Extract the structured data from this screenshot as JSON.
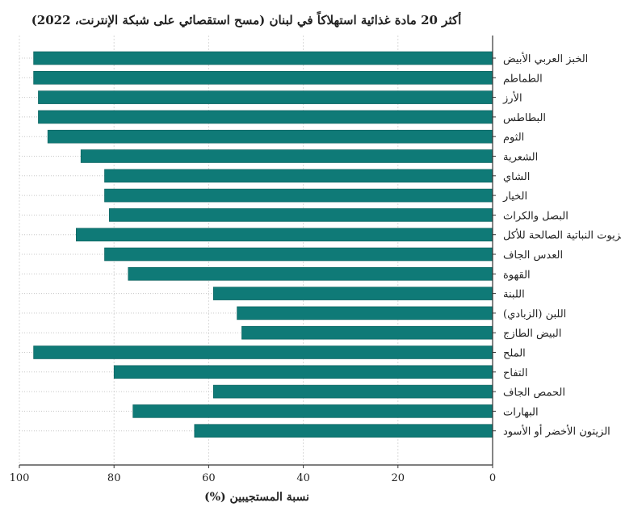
{
  "chart_data": {
    "type": "bar",
    "orientation": "horizontal",
    "title": "أكثر 20 مادة غذائية استهلاكاً في لبنان (مسح استقصائي على شبكة الإنترنت، 2022)",
    "xlabel": "نسبة المستجيبين (%)",
    "ylabel": "",
    "xlim": [
      100,
      0
    ],
    "x_direction": "reversed",
    "xticks": [
      100,
      80,
      60,
      40,
      20,
      0
    ],
    "grid": true,
    "legend": "none",
    "bar_color": "#0f7a77",
    "categories": [
      "الخبز العربي الأبيض",
      "الطماطم",
      "الأرز",
      "البطاطس",
      "الثوم",
      "الشعرية",
      "الشاي",
      "الخيار",
      "البصل والكراث",
      "الزيوت النباتية الصالحة للأكل",
      "العدس الجاف",
      "القهوة",
      "اللبنة",
      "اللبن (الزبادي)",
      "البيض الطازج",
      "الملح",
      "التفاح",
      "الحمص الجاف",
      "البهارات",
      "الزيتون الأخضر أو الأسود"
    ],
    "values": [
      97,
      97,
      96,
      96,
      94,
      87,
      82,
      82,
      81,
      88,
      82,
      77,
      59,
      54,
      53,
      97,
      80,
      59,
      76,
      63
    ]
  }
}
